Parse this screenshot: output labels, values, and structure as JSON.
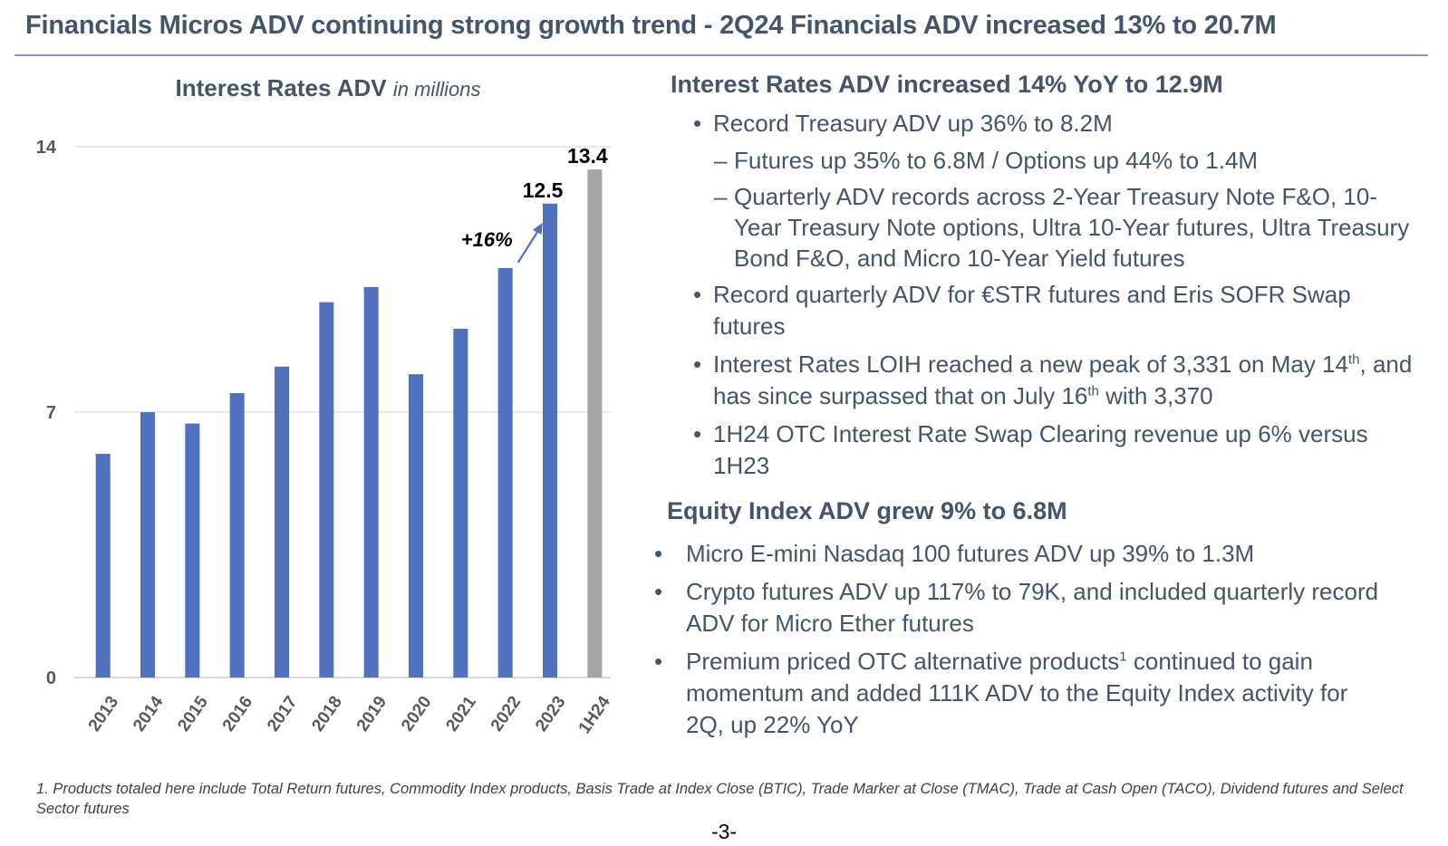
{
  "slide": {
    "title": "Financials Micros ADV continuing strong growth trend - 2Q24 Financials ADV increased 13% to 20.7M",
    "page_number": "-3-"
  },
  "chart_title": {
    "main": "Interest Rates ADV",
    "unit": "in millions"
  },
  "chart_data": {
    "type": "bar",
    "title": "Interest Rates ADV in millions",
    "xlabel": "",
    "ylabel": "",
    "categories": [
      "2013",
      "2014",
      "2015",
      "2016",
      "2017",
      "2018",
      "2019",
      "2020",
      "2021",
      "2022",
      "2023",
      "1H24"
    ],
    "values": [
      5.9,
      7.0,
      6.7,
      7.5,
      8.2,
      9.9,
      10.3,
      8.0,
      9.2,
      10.8,
      12.5,
      13.4
    ],
    "bar_colors": [
      "#4f71be",
      "#4f71be",
      "#4f71be",
      "#4f71be",
      "#4f71be",
      "#4f71be",
      "#4f71be",
      "#4f71be",
      "#4f71be",
      "#4f71be",
      "#4f71be",
      "#a5a5a5"
    ],
    "ylim": [
      0,
      14
    ],
    "yticks": [
      0,
      7,
      14
    ],
    "ytick_labels": [
      "0",
      "7",
      "14"
    ],
    "grid": true,
    "data_labels": [
      {
        "category": "2023",
        "text": "12.5"
      },
      {
        "category": "1H24",
        "text": "13.4"
      }
    ],
    "annotation": {
      "text": "+16%",
      "from": "2022",
      "to": "2023",
      "arrow_color": "#4f71be"
    }
  },
  "interest_rates": {
    "heading": "Interest Rates ADV increased 14% YoY to 12.9M",
    "bullets": [
      {
        "marker": "•",
        "text": "Record Treasury ADV up 36% to 8.2M"
      },
      {
        "marker": "–",
        "text": "Futures up 35% to 6.8M / Options up 44% to 1.4M"
      },
      {
        "marker": "–",
        "text": "Quarterly ADV records across 2-Year Treasury Note F&O, 10-Year Treasury Note options, Ultra 10-Year futures, Ultra Treasury Bond F&O, and Micro 10-Year Yield futures"
      },
      {
        "marker": "•",
        "text": "Record quarterly ADV for €STR futures and Eris SOFR Swap futures"
      },
      {
        "marker": "•",
        "text_parts": [
          "Interest Rates LOIH reached a new peak of 3,331 on May 14",
          "th",
          ", and has since surpassed that on July 16",
          "th",
          " with 3,370"
        ]
      },
      {
        "marker": "•",
        "text": "1H24 OTC Interest Rate Swap Clearing revenue up 6% versus 1H23"
      }
    ]
  },
  "equity_index": {
    "heading": "Equity Index ADV grew 9% to 6.8M",
    "bullets": [
      {
        "marker": "•",
        "text": "Micro E-mini Nasdaq 100 futures ADV up 39% to 1.3M"
      },
      {
        "marker": "•",
        "text": "Crypto futures ADV up 117% to 79K, and included quarterly record ADV for Micro Ether futures"
      },
      {
        "marker": "•",
        "text_parts": [
          "Premium priced OTC alternative products",
          "1",
          " continued to gain momentum and added 111K ADV to the Equity Index activity for 2Q, up 22% YoY"
        ]
      }
    ]
  },
  "footnote": "1. Products totaled here include Total Return futures, Commodity Index products, Basis Trade at Index Close (BTIC), Trade Marker at Close (TMAC), Trade at Cash Open (TACO), Dividend futures and Select Sector futures"
}
